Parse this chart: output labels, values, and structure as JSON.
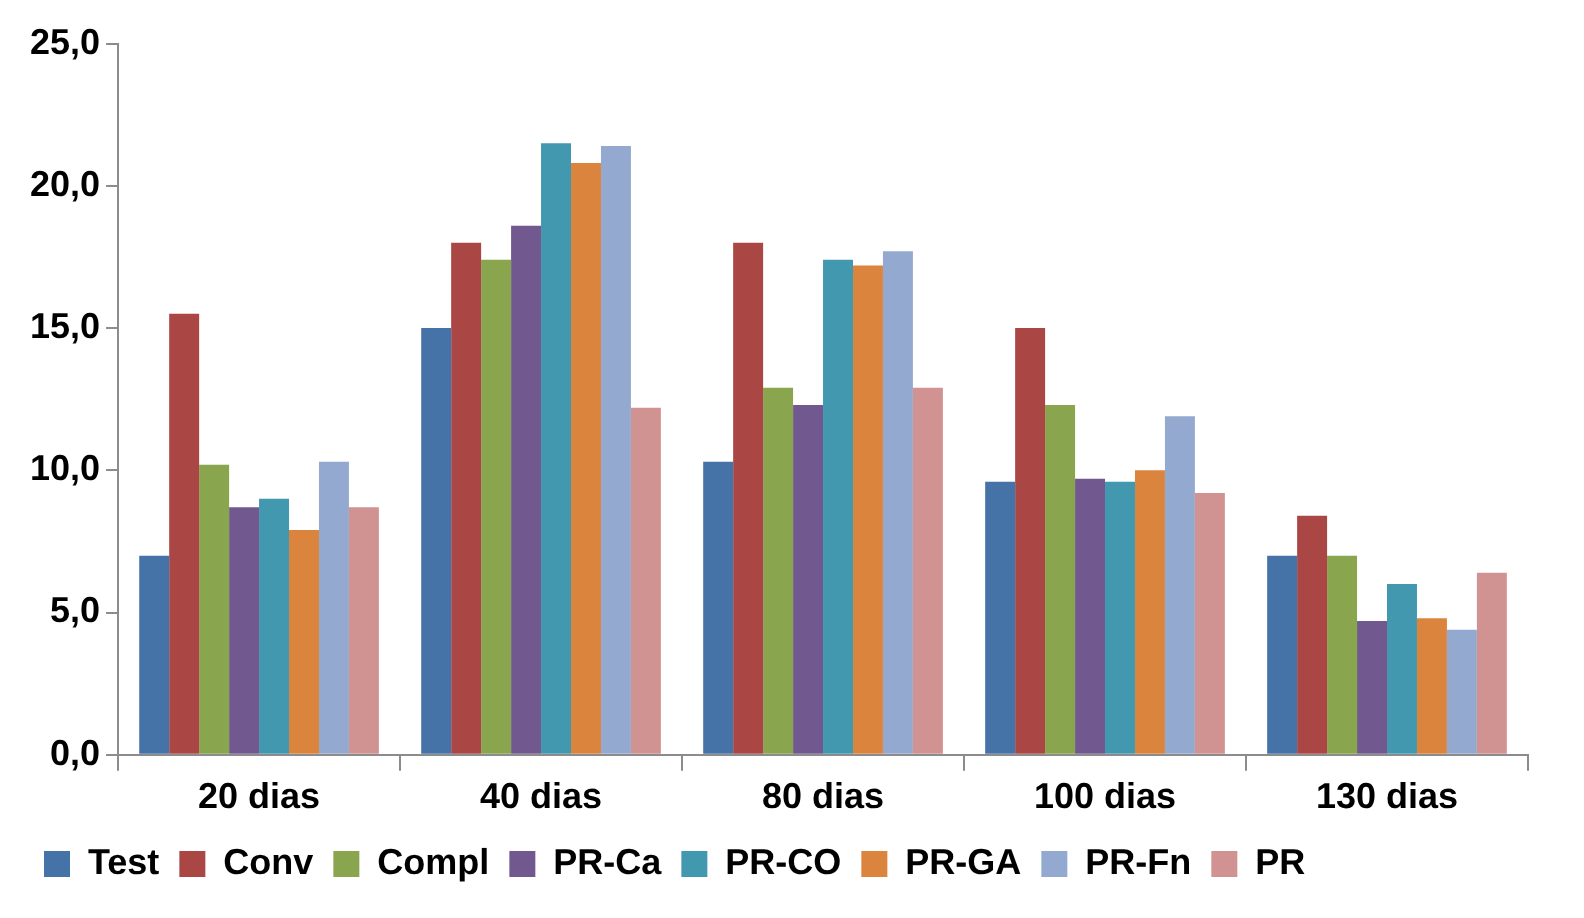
{
  "chart_data": {
    "type": "bar",
    "categories": [
      "20 dias",
      "40 dias",
      "80 dias",
      "100 dias",
      "130 dias"
    ],
    "series": [
      {
        "name": "Test",
        "color": "#4572a7",
        "values": [
          7.0,
          15.0,
          10.3,
          9.6,
          7.0
        ]
      },
      {
        "name": "Conv",
        "color": "#aa4643",
        "values": [
          15.5,
          18.0,
          18.0,
          15.0,
          8.4
        ]
      },
      {
        "name": "Compl",
        "color": "#89a54e",
        "values": [
          10.2,
          17.4,
          12.9,
          12.3,
          7.0
        ]
      },
      {
        "name": "PR-Ca",
        "color": "#71588f",
        "values": [
          8.7,
          18.6,
          12.3,
          9.7,
          4.7
        ]
      },
      {
        "name": "PR-CO",
        "color": "#4198af",
        "values": [
          9.0,
          21.5,
          17.4,
          9.6,
          6.0
        ]
      },
      {
        "name": "PR-GA",
        "color": "#db843d",
        "values": [
          7.9,
          20.8,
          17.2,
          10.0,
          4.8
        ]
      },
      {
        "name": "PR-Fn",
        "color": "#93a9cf",
        "values": [
          10.3,
          21.4,
          17.7,
          11.9,
          4.4
        ]
      },
      {
        "name": "PR",
        "color": "#d19392",
        "values": [
          8.7,
          12.2,
          12.9,
          9.2,
          6.4
        ]
      }
    ],
    "ylim": [
      0,
      25
    ],
    "yticks": [
      {
        "value": 0,
        "label": "0,0"
      },
      {
        "value": 5,
        "label": "5,0"
      },
      {
        "value": 10,
        "label": "10,0"
      },
      {
        "value": 15,
        "label": "15,0"
      },
      {
        "value": 20,
        "label": "20,0"
      },
      {
        "value": 25,
        "label": "25,0"
      }
    ],
    "legend": "bottom"
  }
}
